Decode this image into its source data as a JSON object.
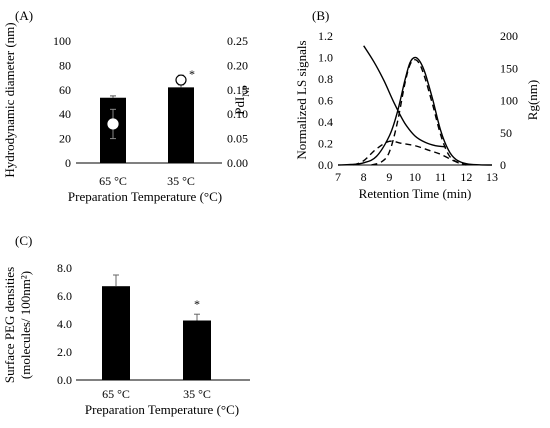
{
  "chart_data": [
    {
      "type": "bar",
      "panel_label": "(A)",
      "categories": [
        "65 °C",
        "35 °C"
      ],
      "xlabel": "Preparation Temperature (°C)",
      "ylabel": "Hydrodynamic diameter (nm)",
      "y2label_main": "PdI",
      "y2label_sub": "NP",
      "ylim": [
        0,
        100
      ],
      "yticks": [
        "0",
        "20",
        "40",
        "60",
        "80",
        "100"
      ],
      "y2lim": [
        0,
        0.25
      ],
      "y2ticks": [
        "0.00",
        "0.05",
        "0.10",
        "0.15",
        "0.20",
        "0.25"
      ],
      "series": [
        {
          "values": [
            53.5,
            62
          ],
          "errors": [
            1.5,
            3
          ]
        },
        {
          "axis": "y2",
          "values": [
            0.08,
            0.17
          ],
          "errors": [
            0.03,
            0.01
          ]
        }
      ],
      "annotations": [
        {
          "category": "35 °C",
          "text": "*"
        }
      ]
    },
    {
      "type": "line",
      "panel_label": "(B)",
      "xlabel": "Retention Time (min)",
      "ylabel": "Normalized LS signals",
      "y2label": "Rg(nm)",
      "xlim": [
        7,
        13
      ],
      "xticks": [
        "7",
        "8",
        "9",
        "10",
        "11",
        "12",
        "13"
      ],
      "ylim": [
        0,
        1.2
      ],
      "yticks": [
        "0.0",
        "0.2",
        "0.4",
        "0.6",
        "0.8",
        "1.0",
        "1.2"
      ],
      "y2lim": [
        0,
        200
      ],
      "y2ticks": [
        "0",
        "50",
        "100",
        "150",
        "200"
      ],
      "series": [
        {
          "style": "solid",
          "x": [
            7.0,
            7.5,
            8.0,
            8.5,
            9.0,
            9.3,
            9.6,
            9.8,
            10.0,
            10.2,
            10.4,
            10.7,
            11.0,
            11.3,
            11.6,
            12.0,
            12.5,
            13.0
          ],
          "y": [
            0.0,
            0.005,
            0.02,
            0.08,
            0.27,
            0.48,
            0.78,
            0.95,
            1.0,
            0.96,
            0.85,
            0.6,
            0.32,
            0.14,
            0.05,
            0.012,
            0.002,
            0.0
          ]
        },
        {
          "style": "dashed",
          "x": [
            8.3,
            8.7,
            9.0,
            9.3,
            9.6,
            9.8,
            10.0,
            10.2,
            10.4,
            10.7,
            11.0,
            11.3,
            11.6,
            12.0
          ],
          "y": [
            0.0,
            0.03,
            0.12,
            0.38,
            0.75,
            0.93,
            0.98,
            0.93,
            0.8,
            0.55,
            0.28,
            0.1,
            0.03,
            0.0
          ]
        },
        {
          "style": "dashed",
          "x": [
            7.6,
            8.0,
            8.5,
            9.0,
            9.5,
            10.0,
            10.5,
            11.0,
            11.5,
            12.0
          ],
          "y": [
            0.0,
            0.04,
            0.15,
            0.22,
            0.2,
            0.18,
            0.14,
            0.1,
            0.04,
            0.0
          ]
        },
        {
          "style": "solid",
          "axis": "y2",
          "x": [
            8.0,
            8.4,
            8.8,
            9.2,
            9.6,
            10.0,
            10.4,
            10.8,
            11.2
          ],
          "y": [
            185,
            160,
            130,
            95,
            65,
            45,
            35,
            30,
            28
          ]
        }
      ]
    },
    {
      "type": "bar",
      "panel_label": "(C)",
      "categories": [
        "65 °C",
        "35 °C"
      ],
      "xlabel": "Preparation Temperature (°C)",
      "ylabel_line1": "Surface PEG densities",
      "ylabel_line2": "(molecules/ 100nm²)",
      "ylim": [
        0,
        8
      ],
      "yticks": [
        "0.0",
        "2.0",
        "4.0",
        "6.0",
        "8.0"
      ],
      "series": [
        {
          "values": [
            6.7,
            4.25
          ],
          "errors": [
            0.8,
            0.45
          ]
        }
      ],
      "annotations": [
        {
          "category": "35 °C",
          "text": "*"
        }
      ]
    }
  ]
}
